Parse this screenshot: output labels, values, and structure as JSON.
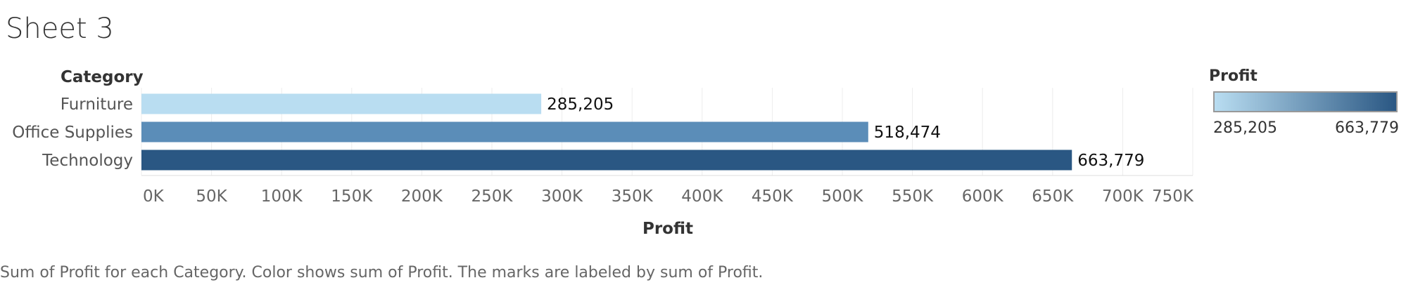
{
  "sheet": {
    "title": "Sheet 3",
    "caption": "Sum of Profit for each Category.  Color shows sum of Profit.  The marks are labeled by sum of Profit."
  },
  "legend": {
    "title": "Profit",
    "min_label": "285,205",
    "max_label": "663,779",
    "color_low": "#b9ddf1",
    "color_high": "#2a5783"
  },
  "chart_data": {
    "type": "bar",
    "orientation": "horizontal",
    "row_header": "Category",
    "categories": [
      "Furniture",
      "Office Supplies",
      "Technology"
    ],
    "values": [
      285205,
      518474,
      663779
    ],
    "value_labels": [
      "285,205",
      "518,474",
      "663,779"
    ],
    "colors": [
      "#b9ddf1",
      "#5b8db8",
      "#2a5783"
    ],
    "xlabel": "Profit",
    "xlim": [
      0,
      750000
    ],
    "xticks": [
      0,
      50000,
      100000,
      150000,
      200000,
      250000,
      300000,
      350000,
      400000,
      450000,
      500000,
      550000,
      600000,
      650000,
      700000,
      750000
    ],
    "xtick_labels": [
      "0K",
      "50K",
      "100K",
      "150K",
      "200K",
      "250K",
      "300K",
      "350K",
      "400K",
      "450K",
      "500K",
      "550K",
      "600K",
      "650K",
      "700K",
      "750K"
    ],
    "grid": true
  }
}
